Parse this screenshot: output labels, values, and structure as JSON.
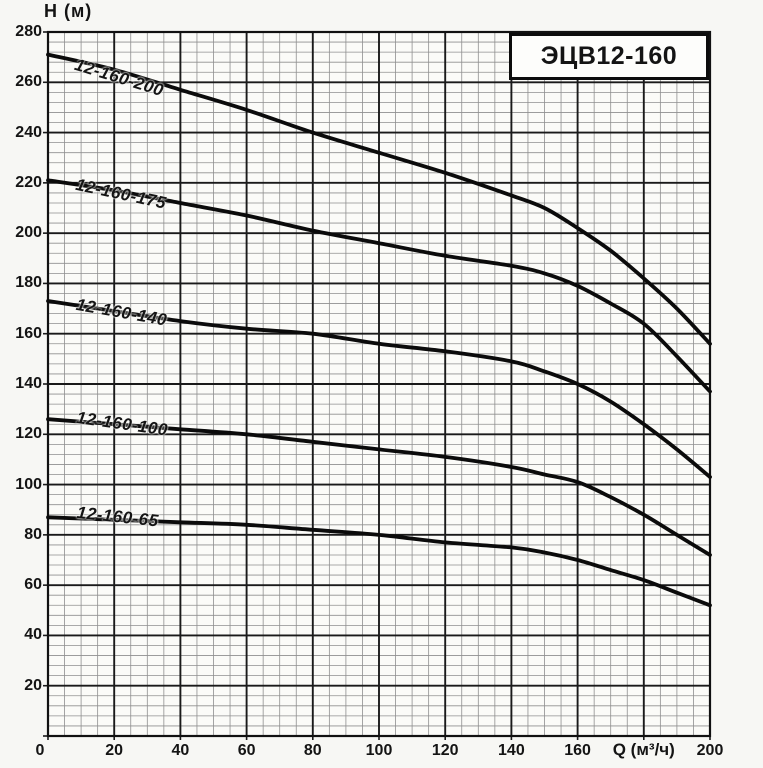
{
  "page": {
    "background": "#f7f7f4"
  },
  "title_box": {
    "label": "ЭЦВ12-160"
  },
  "chart_data": {
    "type": "line",
    "title": "ЭЦВ12-160",
    "xlabel": "Q (м³/ч)",
    "ylabel": "H (м)",
    "xlim": [
      0,
      200
    ],
    "ylim": [
      0,
      280
    ],
    "x_major_step": 20,
    "x_minor_step": 5,
    "y_major_step": 20,
    "y_minor_step": 4,
    "x_ticks": [
      0,
      20,
      40,
      60,
      80,
      100,
      120,
      140,
      160,
      200
    ],
    "xlabel_position": 180,
    "y_ticks": [
      280,
      260,
      240,
      220,
      200,
      180,
      160,
      140,
      120,
      100,
      80,
      60,
      40,
      20
    ],
    "grid": "major+minor",
    "legend_position": "labels-on-curves",
    "colors": {
      "curve": "#0b0b0b",
      "grid_major": "#1a1a1a",
      "grid_minor": "#8f8f8f",
      "frame": "#111111",
      "plot_bg": "#fbfbf8"
    },
    "series": [
      {
        "name": "12-160-200",
        "points": [
          [
            0,
            271
          ],
          [
            20,
            265
          ],
          [
            40,
            257
          ],
          [
            60,
            249
          ],
          [
            80,
            240
          ],
          [
            100,
            232
          ],
          [
            120,
            224
          ],
          [
            140,
            215
          ],
          [
            150,
            210
          ],
          [
            160,
            202
          ],
          [
            170,
            193
          ],
          [
            180,
            182
          ],
          [
            190,
            170
          ],
          [
            200,
            156
          ]
        ]
      },
      {
        "name": "12-160-175",
        "points": [
          [
            0,
            221
          ],
          [
            20,
            217
          ],
          [
            40,
            212
          ],
          [
            60,
            207
          ],
          [
            80,
            201
          ],
          [
            100,
            196
          ],
          [
            120,
            191
          ],
          [
            140,
            187
          ],
          [
            150,
            184
          ],
          [
            160,
            179
          ],
          [
            170,
            172
          ],
          [
            180,
            164
          ],
          [
            190,
            151
          ],
          [
            200,
            137
          ]
        ]
      },
      {
        "name": "12-160-140",
        "points": [
          [
            0,
            173
          ],
          [
            20,
            169
          ],
          [
            40,
            165
          ],
          [
            60,
            162
          ],
          [
            80,
            160
          ],
          [
            100,
            156
          ],
          [
            120,
            153
          ],
          [
            140,
            149
          ],
          [
            150,
            145
          ],
          [
            160,
            140
          ],
          [
            170,
            133
          ],
          [
            180,
            124
          ],
          [
            190,
            114
          ],
          [
            200,
            103
          ]
        ]
      },
      {
        "name": "12-160-100",
        "points": [
          [
            0,
            126
          ],
          [
            20,
            124
          ],
          [
            40,
            122
          ],
          [
            60,
            120
          ],
          [
            80,
            117
          ],
          [
            100,
            114
          ],
          [
            120,
            111
          ],
          [
            140,
            107
          ],
          [
            150,
            104
          ],
          [
            160,
            101
          ],
          [
            170,
            95
          ],
          [
            180,
            88
          ],
          [
            190,
            80
          ],
          [
            200,
            72
          ]
        ]
      },
      {
        "name": "12-160-65",
        "points": [
          [
            0,
            87
          ],
          [
            20,
            86
          ],
          [
            40,
            85
          ],
          [
            60,
            84
          ],
          [
            80,
            82
          ],
          [
            100,
            80
          ],
          [
            120,
            77
          ],
          [
            140,
            75
          ],
          [
            150,
            73
          ],
          [
            160,
            70
          ],
          [
            170,
            66
          ],
          [
            180,
            62
          ],
          [
            190,
            57
          ],
          [
            200,
            52
          ]
        ]
      }
    ]
  }
}
